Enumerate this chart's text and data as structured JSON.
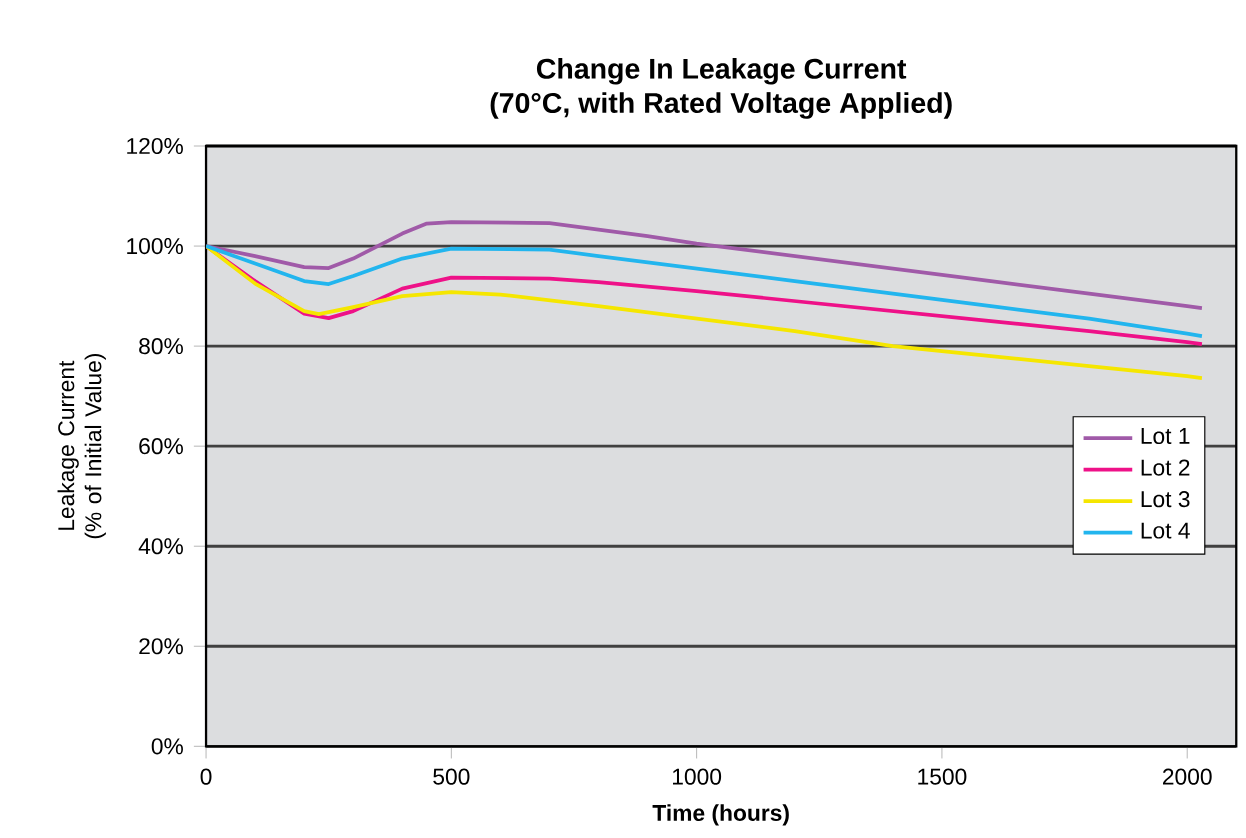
{
  "chart_data": {
    "type": "line",
    "title": "Change In Leakage Current",
    "subtitle": "(70°C, with Rated Voltage Applied)",
    "xlabel": "Time (hours)",
    "ylabel": "Leakage Current\n(% of Initial Value)",
    "xlim": [
      0,
      2100
    ],
    "xticks": [
      0,
      500,
      1000,
      1500,
      2000
    ],
    "ylim": [
      0,
      120
    ],
    "yticks": [
      {
        "value": 0,
        "label": "0%"
      },
      {
        "value": 20,
        "label": "20%"
      },
      {
        "value": 40,
        "label": "40%"
      },
      {
        "value": 60,
        "label": "60%"
      },
      {
        "value": 80,
        "label": "80%"
      },
      {
        "value": 100,
        "label": "100%"
      },
      {
        "value": 120,
        "label": "120%"
      }
    ],
    "grid": "y",
    "legend": "right",
    "marker": "none",
    "line_style": "solid",
    "series": [
      {
        "name": "Lot 1",
        "color": "#a05aa8",
        "x": [
          0,
          100,
          200,
          250,
          300,
          400,
          450,
          500,
          700,
          900,
          1000,
          1200,
          1400,
          1600,
          1800,
          2000,
          2030
        ],
        "values": [
          100,
          98,
          95.8,
          95.6,
          97.5,
          102.5,
          104.5,
          104.8,
          104.6,
          102,
          100.5,
          98,
          95.5,
          93,
          90.5,
          88,
          87.6
        ]
      },
      {
        "name": "Lot 2",
        "color": "#ee1188",
        "x": [
          0,
          100,
          200,
          250,
          300,
          400,
          500,
          700,
          800,
          1000,
          1200,
          1400,
          1600,
          1800,
          2000,
          2030
        ],
        "values": [
          100,
          93,
          86.5,
          85.6,
          87,
          91.5,
          93.7,
          93.5,
          92.8,
          91,
          89,
          87,
          85,
          83,
          80.8,
          80.4
        ]
      },
      {
        "name": "Lot 3",
        "color": "#f5e600",
        "x": [
          0,
          100,
          200,
          230,
          300,
          400,
          500,
          600,
          800,
          1000,
          1200,
          1400,
          1600,
          1800,
          2000,
          2030
        ],
        "values": [
          100,
          92.5,
          87,
          86.4,
          87.8,
          90,
          90.8,
          90.3,
          88,
          85.5,
          83,
          80,
          78,
          76,
          74,
          73.6
        ]
      },
      {
        "name": "Lot 4",
        "color": "#22b5ee",
        "x": [
          0,
          100,
          200,
          250,
          300,
          400,
          500,
          700,
          800,
          1000,
          1200,
          1400,
          1600,
          1800,
          2000,
          2030
        ],
        "values": [
          100,
          96.5,
          93,
          92.4,
          94,
          97.5,
          99.5,
          99.3,
          98,
          95.5,
          93,
          90.5,
          88,
          85.5,
          82.5,
          82
        ]
      }
    ]
  }
}
